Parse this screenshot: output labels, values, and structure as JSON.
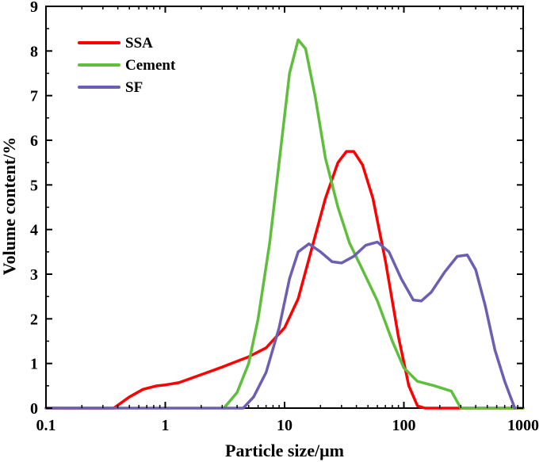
{
  "chart_data": {
    "type": "line",
    "xlabel": "Particle size/μm",
    "ylabel": "Volume content/%",
    "xscale": "log",
    "xlim": [
      0.1,
      1000
    ],
    "ylim": [
      0,
      9
    ],
    "x_ticks": [
      "0.1",
      "1",
      "10",
      "100",
      "1000"
    ],
    "y_ticks": [
      "0",
      "1",
      "2",
      "3",
      "4",
      "5",
      "6",
      "7",
      "8",
      "9"
    ],
    "legend_position": "top-left",
    "grid": false,
    "series": [
      {
        "name": "SSA",
        "color": "#ff0000",
        "points": [
          [
            0.1,
            0
          ],
          [
            0.37,
            0
          ],
          [
            0.5,
            0.25
          ],
          [
            0.65,
            0.42
          ],
          [
            0.85,
            0.5
          ],
          [
            1.0,
            0.52
          ],
          [
            1.3,
            0.57
          ],
          [
            2.0,
            0.75
          ],
          [
            3.0,
            0.92
          ],
          [
            5.0,
            1.15
          ],
          [
            7.0,
            1.35
          ],
          [
            10,
            1.8
          ],
          [
            13,
            2.45
          ],
          [
            17,
            3.6
          ],
          [
            22,
            4.7
          ],
          [
            28,
            5.5
          ],
          [
            33,
            5.75
          ],
          [
            38,
            5.75
          ],
          [
            45,
            5.45
          ],
          [
            55,
            4.7
          ],
          [
            70,
            3.3
          ],
          [
            90,
            1.6
          ],
          [
            110,
            0.5
          ],
          [
            130,
            0.05
          ],
          [
            150,
            0
          ],
          [
            1000,
            0
          ]
        ]
      },
      {
        "name": "Cement",
        "color": "#5fbe3c",
        "points": [
          [
            3.1,
            0
          ],
          [
            4.0,
            0.35
          ],
          [
            5.0,
            1.0
          ],
          [
            6.0,
            2.0
          ],
          [
            7.5,
            3.7
          ],
          [
            9.0,
            5.5
          ],
          [
            11,
            7.5
          ],
          [
            13,
            8.25
          ],
          [
            15,
            8.05
          ],
          [
            18,
            7.0
          ],
          [
            22,
            5.6
          ],
          [
            28,
            4.5
          ],
          [
            35,
            3.7
          ],
          [
            45,
            3.1
          ],
          [
            60,
            2.4
          ],
          [
            80,
            1.5
          ],
          [
            100,
            0.9
          ],
          [
            130,
            0.6
          ],
          [
            180,
            0.5
          ],
          [
            250,
            0.38
          ],
          [
            300,
            0
          ],
          [
            1000,
            0
          ]
        ]
      },
      {
        "name": "SF",
        "color": "#6c5fb3",
        "points": [
          [
            0.1,
            0
          ],
          [
            4.5,
            0
          ],
          [
            5.5,
            0.25
          ],
          [
            7.0,
            0.8
          ],
          [
            9.0,
            1.8
          ],
          [
            11,
            2.9
          ],
          [
            13,
            3.5
          ],
          [
            16,
            3.68
          ],
          [
            20,
            3.5
          ],
          [
            25,
            3.28
          ],
          [
            30,
            3.25
          ],
          [
            38,
            3.4
          ],
          [
            48,
            3.65
          ],
          [
            60,
            3.72
          ],
          [
            75,
            3.5
          ],
          [
            95,
            2.9
          ],
          [
            120,
            2.42
          ],
          [
            140,
            2.4
          ],
          [
            170,
            2.6
          ],
          [
            220,
            3.05
          ],
          [
            280,
            3.4
          ],
          [
            340,
            3.43
          ],
          [
            400,
            3.1
          ],
          [
            480,
            2.3
          ],
          [
            580,
            1.3
          ],
          [
            700,
            0.6
          ],
          [
            850,
            0
          ]
        ]
      }
    ]
  }
}
